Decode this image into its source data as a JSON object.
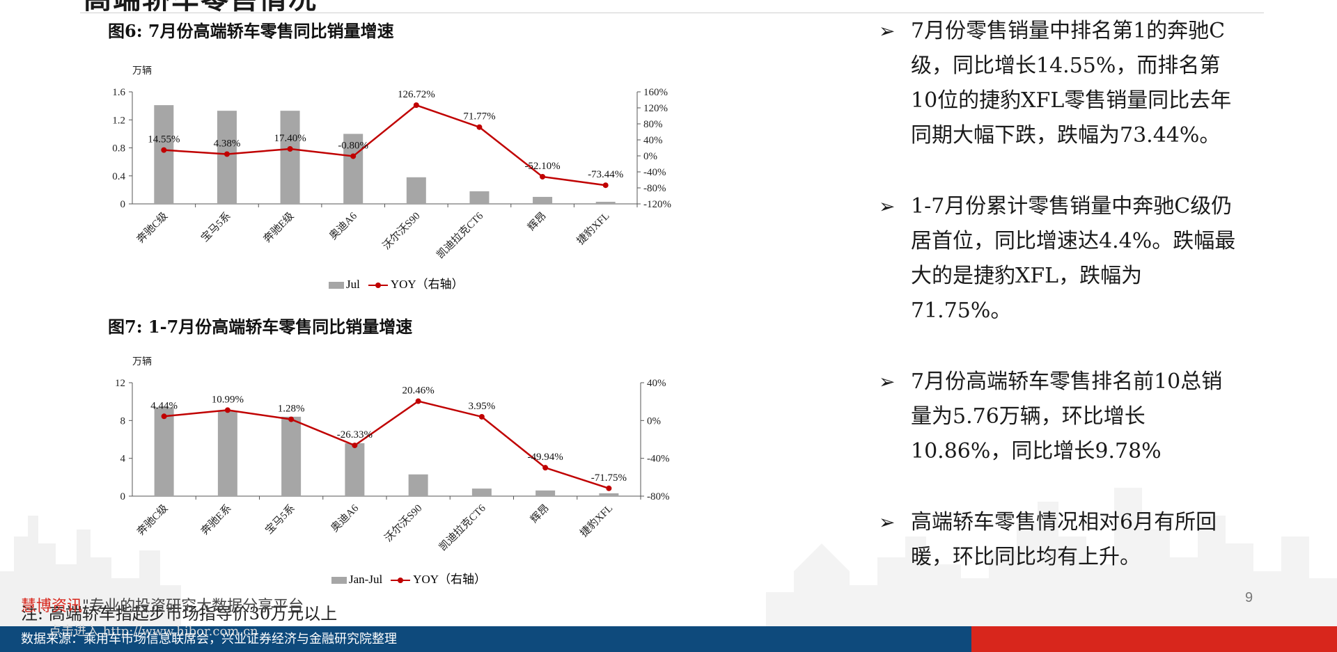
{
  "header": {
    "title": "高端轿车零售情况"
  },
  "figures": [
    {
      "title": "图6:  7月份高端轿车零售同比销量增速",
      "legend": {
        "bar": "Jul",
        "line": "YOY（右轴）"
      }
    },
    {
      "title": "图7:  1-7月份高端轿车零售同比销量增速",
      "legend": {
        "bar": "Jan-Jul",
        "line": "YOY（右轴）"
      }
    }
  ],
  "chart_data": [
    {
      "type": "bar",
      "title": "图6:  7月份高端轿车零售同比销量增速",
      "unit_label": "万辆",
      "categories": [
        "奔驰C级",
        "宝马5系",
        "奔驰E级",
        "奥迪A6",
        "沃尔沃S90",
        "凯迪拉克CT6",
        "辉昂",
        "捷豹XFL"
      ],
      "series": [
        {
          "name": "Jul",
          "type": "bar",
          "axis": "left",
          "values": [
            1.41,
            1.33,
            1.33,
            1.0,
            0.38,
            0.18,
            0.1,
            0.03
          ]
        },
        {
          "name": "YOY（右轴）",
          "type": "line",
          "axis": "right",
          "values": [
            14.55,
            4.38,
            17.4,
            -0.8,
            126.72,
            71.77,
            -52.1,
            -73.44
          ]
        }
      ],
      "data_labels": [
        "14.55%",
        "4.38%",
        "17.40%",
        "-0.80%",
        "126.72%",
        "71.77%",
        "-52.10%",
        "-73.44%"
      ],
      "ylim_left": [
        0,
        1.6
      ],
      "yticks_left": [
        "0",
        "0.4",
        "0.8",
        "1.2",
        "1.6"
      ],
      "ylim_right": [
        -120,
        160
      ],
      "yticks_right": [
        "-120%",
        "-80%",
        "-40%",
        "0%",
        "40%",
        "80%",
        "120%",
        "160%"
      ],
      "colors": {
        "bar": "#a6a6a6",
        "line": "#c00000"
      },
      "legend_position": "bottom"
    },
    {
      "type": "bar",
      "title": "图7:  1-7月份高端轿车零售同比销量增速",
      "unit_label": "万辆",
      "categories": [
        "奔驰C级",
        "奔驰E系",
        "宝马5系",
        "奥迪A6",
        "沃尔沃S90",
        "凯迪拉克CT6",
        "辉昂",
        "捷豹XFL"
      ],
      "series": [
        {
          "name": "Jan-Jul",
          "type": "bar",
          "axis": "left",
          "values": [
            9.4,
            9.0,
            8.4,
            5.6,
            2.3,
            0.8,
            0.6,
            0.3
          ]
        },
        {
          "name": "YOY（右轴）",
          "type": "line",
          "axis": "right",
          "values": [
            4.44,
            10.99,
            1.28,
            -26.33,
            20.46,
            3.95,
            -49.94,
            -71.75
          ]
        }
      ],
      "data_labels": [
        "4.44%",
        "10.99%",
        "1.28%",
        "-26.33%",
        "20.46%",
        "3.95%",
        "-49.94%",
        "-71.75%"
      ],
      "ylim_left": [
        0,
        12
      ],
      "yticks_left": [
        "0",
        "4",
        "8",
        "12"
      ],
      "ylim_right": [
        -80,
        40
      ],
      "yticks_right": [
        "-80%",
        "-40%",
        "0%",
        "40%"
      ],
      "colors": {
        "bar": "#a6a6a6",
        "line": "#c00000"
      },
      "legend_position": "bottom"
    }
  ],
  "bullets": [
    "7月份零售销量中排名第1的奔驰C级，同比增长14.55%，而排名第10位的捷豹XFL零售销量同比去年同期大幅下跌，跌幅为73.44%。",
    "1-7月份累计零售销量中奔驰C级仍居首位，同比增速达4.4%。跌幅最大的是捷豹XFL，跌幅为71.75%。",
    "7月份高端轿车零售排名前10总销量为5.76万辆，环比增长10.86%，同比增长9.78%",
    "高端轿车零售情况相对6月有所回暖，环比同比均有上升。"
  ],
  "bullet_marker": "➢",
  "page_number": "9",
  "note": "注:  高端轿车指起步市场指导价30万元以上",
  "watermark": {
    "brand": "慧博资讯",
    "text": "\"慧博资讯\"专业的投资研究大数据分享平台",
    "url": "点击进入 http://www.hibor.com.cn"
  },
  "footer": {
    "source": "数据来源：乘用车市场信息联席会，兴业证券经济与金融研究院整理"
  }
}
